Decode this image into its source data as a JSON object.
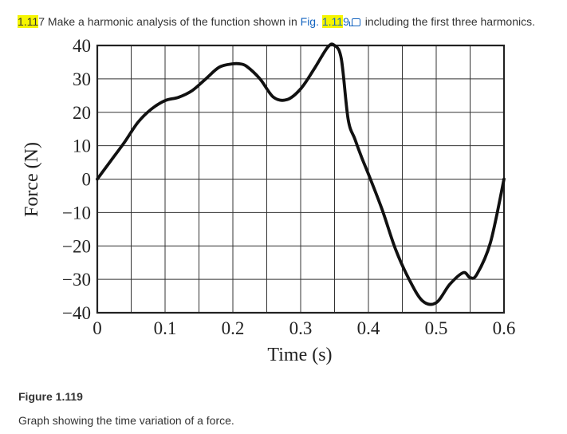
{
  "problem": {
    "number_part1": "1.11",
    "number_part2": "7",
    "text_before_link": " Make a harmonic analysis of the function shown in ",
    "link_prefix": "Fig. ",
    "link_hl": "1.11",
    "link_rest": "9",
    "text_after_link": " including the first three harmonics."
  },
  "figure": {
    "label": "Figure 1.119",
    "caption": "Graph showing the time variation of a force."
  },
  "chart_data": {
    "type": "line",
    "xlabel": "Time (s)",
    "ylabel": "Force (N)",
    "xlim": [
      0,
      0.6
    ],
    "ylim": [
      -40,
      40
    ],
    "x_ticks": [
      0,
      0.05,
      0.1,
      0.15,
      0.2,
      0.25,
      0.3,
      0.35,
      0.4,
      0.45,
      0.5,
      0.55,
      0.6
    ],
    "y_ticks": [
      -40,
      -30,
      -20,
      -10,
      0,
      10,
      20,
      30,
      40
    ],
    "x_tick_labels": [
      "0",
      "0.1",
      "0.2",
      "0.3",
      "0.4",
      "0.5",
      "0.6"
    ],
    "x_tick_label_values": [
      0,
      0.1,
      0.2,
      0.3,
      0.4,
      0.5,
      0.6
    ],
    "y_tick_labels": [
      "40",
      "30",
      "20",
      "10",
      "0",
      "−10",
      "−20",
      "−30",
      "−40"
    ],
    "y_tick_label_values": [
      40,
      30,
      20,
      10,
      0,
      -10,
      -20,
      -30,
      -40
    ],
    "grid": true,
    "series": [
      {
        "x": [
          0,
          0.02,
          0.04,
          0.06,
          0.08,
          0.1,
          0.12,
          0.14,
          0.16,
          0.18,
          0.2,
          0.21,
          0.22,
          0.24,
          0.26,
          0.28,
          0.3,
          0.32,
          0.34,
          0.35,
          0.36,
          0.37,
          0.38,
          0.39,
          0.4,
          0.42,
          0.44,
          0.46,
          0.48,
          0.5,
          0.52,
          0.54,
          0.55,
          0.56,
          0.58,
          0.6
        ],
        "y": [
          0,
          5.5,
          11,
          17,
          21,
          23.5,
          24.5,
          26.5,
          30,
          33.5,
          34.5,
          34.5,
          33.8,
          30,
          24.5,
          23.8,
          27,
          33,
          39.5,
          40,
          36,
          18,
          12,
          6.5,
          1.5,
          -9,
          -21,
          -30,
          -36.5,
          -37,
          -31.5,
          -28,
          -29.5,
          -28.5,
          -19,
          0
        ],
        "color": "#111111"
      }
    ]
  }
}
